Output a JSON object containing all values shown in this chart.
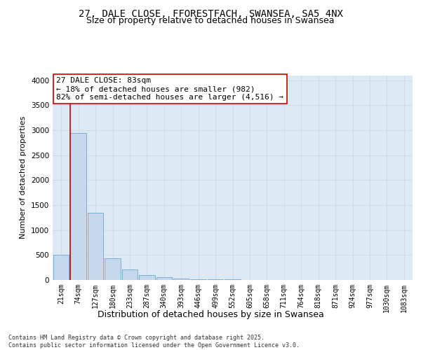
{
  "title1": "27, DALE CLOSE, FFORESTFACH, SWANSEA, SA5 4NX",
  "title2": "Size of property relative to detached houses in Swansea",
  "xlabel": "Distribution of detached houses by size in Swansea",
  "ylabel": "Number of detached properties",
  "bins": [
    "21sqm",
    "74sqm",
    "127sqm",
    "180sqm",
    "233sqm",
    "287sqm",
    "340sqm",
    "393sqm",
    "446sqm",
    "499sqm",
    "552sqm",
    "605sqm",
    "658sqm",
    "711sqm",
    "764sqm",
    "818sqm",
    "871sqm",
    "924sqm",
    "977sqm",
    "1030sqm",
    "1083sqm"
  ],
  "values": [
    510,
    2950,
    1350,
    430,
    215,
    105,
    55,
    30,
    18,
    12,
    8,
    6,
    5,
    3,
    2,
    2,
    1,
    1,
    1,
    1,
    1
  ],
  "bar_color": "#c5d8ed",
  "bar_edge_color": "#7aaed6",
  "vertical_line_color": "#cc0000",
  "annotation_text": "27 DALE CLOSE: 83sqm\n← 18% of detached houses are smaller (982)\n82% of semi-detached houses are larger (4,516) →",
  "annotation_box_color": "#ffffff",
  "annotation_box_edge_color": "#cc0000",
  "ylim": [
    0,
    4100
  ],
  "yticks": [
    0,
    500,
    1000,
    1500,
    2000,
    2500,
    3000,
    3500,
    4000
  ],
  "grid_color": "#d0dce8",
  "background_color": "#ddeaf5",
  "footer": "Contains HM Land Registry data © Crown copyright and database right 2025.\nContains public sector information licensed under the Open Government Licence v3.0.",
  "title1_fontsize": 10,
  "title2_fontsize": 9,
  "tick_fontsize": 7,
  "ylabel_fontsize": 8,
  "xlabel_fontsize": 9,
  "annotation_fontsize": 8,
  "footer_fontsize": 6
}
